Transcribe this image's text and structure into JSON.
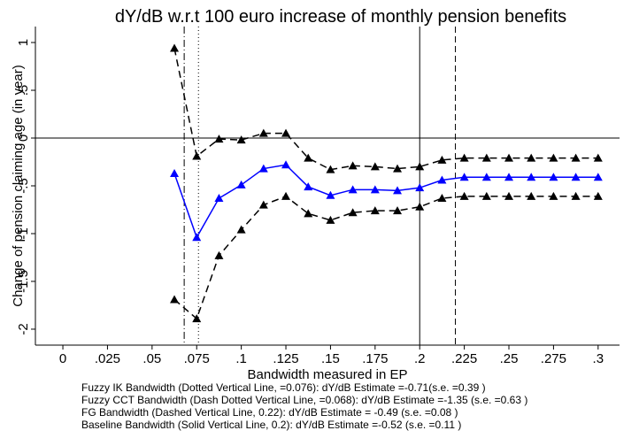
{
  "chart_data": {
    "type": "line",
    "title": "dY/dB w.r.t 100 euro increase of monthly pension benefits",
    "x_label": "Bandwidth measured in EP",
    "y_label": "Change of pension claiming age (in year)",
    "x": [
      0.0625,
      0.075,
      0.0875,
      0.1,
      0.1125,
      0.125,
      0.1375,
      0.15,
      0.1625,
      0.175,
      0.1875,
      0.2,
      0.2125,
      0.225,
      0.2375,
      0.25,
      0.2625,
      0.275,
      0.2875,
      0.3
    ],
    "series": [
      {
        "color": "#000000",
        "dash": "8,5",
        "values": [
          0.94,
          -0.19,
          -0.01,
          -0.02,
          0.05,
          0.05,
          -0.21,
          -0.33,
          -0.29,
          -0.3,
          -0.32,
          -0.3,
          -0.23,
          -0.21,
          -0.21,
          -0.21,
          -0.21,
          -0.21,
          -0.21,
          -0.21
        ]
      },
      {
        "color": "#0000ff",
        "dash": "none",
        "values": [
          -0.37,
          -1.04,
          -0.63,
          -0.49,
          -0.32,
          -0.28,
          -0.51,
          -0.6,
          -0.54,
          -0.54,
          -0.55,
          -0.52,
          -0.44,
          -0.41,
          -0.41,
          -0.41,
          -0.41,
          -0.41,
          -0.41,
          -0.41
        ]
      },
      {
        "color": "#000000",
        "dash": "8,5",
        "values": [
          -1.69,
          -1.89,
          -1.23,
          -0.96,
          -0.7,
          -0.61,
          -0.79,
          -0.86,
          -0.78,
          -0.76,
          -0.76,
          -0.72,
          -0.63,
          -0.61,
          -0.61,
          -0.61,
          -0.61,
          -0.61,
          -0.61,
          -0.61
        ]
      }
    ],
    "xlim": [
      -0.0154,
      0.312
    ],
    "ylim": [
      -2.167,
      1.167
    ],
    "xticks": [
      0,
      {
        "value": 0.025,
        "label": ".025"
      },
      {
        "value": 0.05,
        "label": ".05"
      },
      {
        "value": 0.075,
        "label": ".075"
      },
      {
        "value": 0.1,
        "label": ".1"
      },
      {
        "value": 0.125,
        "label": ".125"
      },
      {
        "value": 0.15,
        "label": ".15"
      },
      {
        "value": 0.175,
        "label": ".175"
      },
      {
        "value": 0.2,
        "label": ".2"
      },
      {
        "value": 0.225,
        "label": ".225"
      },
      {
        "value": 0.25,
        "label": ".25"
      },
      {
        "value": 0.275,
        "label": ".275"
      },
      {
        "value": 0.3,
        "label": ".3"
      }
    ],
    "yticks": [
      1,
      {
        "value": 0.5,
        "label": ".5"
      },
      0,
      {
        "value": -0.5,
        "label": "-.5"
      },
      -1,
      {
        "value": -1.5,
        "label": "-1.5"
      },
      -2
    ],
    "hline": 0,
    "vlines": [
      {
        "x": 0.076,
        "dash": "1,3"
      },
      {
        "x": 0.068,
        "dash": "8,3,1,3"
      },
      {
        "x": 0.22,
        "dash": "7,4"
      },
      {
        "x": 0.2,
        "dash": "none"
      }
    ],
    "notes": [
      "Fuzzy IK Bandwidth (Dotted Vertical Line, =0.076): dY/dB Estimate =-0.71(s.e. =0.39 )",
      "Fuzzy CCT Bandwidth (Dash Dotted Vertical Line, =0.068): dY/dB Estimate =-1.35 (s.e. =0.63 )",
      "FG Bandwidth (Dashed Vertical Line, 0.22): dY/dB Estimate = -0.49 (s.e. =0.08 )",
      "Baseline Bandwidth (Solid Vertical Line, 0.2): dY/dB Estimate =-0.52 (s.e. =0.11 )"
    ]
  }
}
